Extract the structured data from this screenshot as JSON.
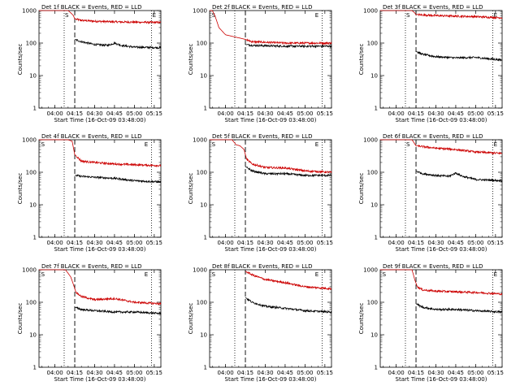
{
  "chart_data": [
    {
      "type": "line",
      "title": "Det 1f BLACK = Events, RED = LLD",
      "xlabel": "Start Time (16-Oct-09 03:48:00)",
      "ylabel": "Counts/sec",
      "yscale": "log",
      "ylim": [
        1,
        1000
      ],
      "x_tick_labels": [
        "04:00",
        "04:15",
        "04:30",
        "04:45",
        "05:00",
        "05:15"
      ],
      "y_tick_labels": [
        "1",
        "10",
        "100",
        "1000"
      ],
      "markers": [
        {
          "label": "S",
          "x": "04:07"
        },
        {
          "label": "E",
          "x": "05:13"
        }
      ],
      "dotted_x": [
        "04:07",
        "05:13"
      ],
      "dashed_x": [
        "04:15"
      ],
      "series": [
        {
          "color": "#cc0000",
          "x": [
            "03:48",
            "04:10",
            "04:12",
            "04:14",
            "04:15",
            "04:20",
            "04:30",
            "04:45",
            "05:00",
            "05:20"
          ],
          "values": [
            1000,
            1000,
            850,
            700,
            550,
            500,
            470,
            450,
            440,
            430
          ]
        },
        {
          "color": "#000000",
          "x": [
            "04:15",
            "04:20",
            "04:30",
            "04:40",
            "04:45",
            "04:50",
            "05:00",
            "05:20"
          ],
          "values": [
            130,
            110,
            90,
            85,
            100,
            85,
            75,
            72
          ]
        }
      ]
    },
    {
      "type": "line",
      "title": "Det 2f BLACK = Events, RED = LLD",
      "xlabel": "Start Time (16-Oct-09 03:48:00)",
      "ylabel": "Counts/sec",
      "yscale": "log",
      "ylim": [
        1,
        1000
      ],
      "x_tick_labels": [
        "04:00",
        "04:15",
        "04:30",
        "04:45",
        "05:00",
        "05:15"
      ],
      "y_tick_labels": [
        "1",
        "10",
        "100",
        "1000"
      ],
      "markers": [
        {
          "label": "S",
          "x": "03:49"
        },
        {
          "label": "E",
          "x": "05:07"
        }
      ],
      "dotted_x": [
        "04:07",
        "05:13"
      ],
      "dashed_x": [
        "04:15"
      ],
      "series": [
        {
          "color": "#cc0000",
          "x": [
            "03:48",
            "03:50",
            "03:52",
            "03:55",
            "04:00",
            "04:15",
            "04:20",
            "04:45",
            "05:20"
          ],
          "values": [
            1000,
            1000,
            700,
            300,
            180,
            130,
            110,
            100,
            100
          ]
        },
        {
          "color": "#000000",
          "x": [
            "04:15",
            "04:20",
            "04:45",
            "05:20"
          ],
          "values": [
            90,
            85,
            80,
            80
          ]
        }
      ]
    },
    {
      "type": "line",
      "title": "Det 3f BLACK = Events, RED = LLD",
      "xlabel": "Start Time (16-Oct-09 03:48:00)",
      "ylabel": "Counts/sec",
      "yscale": "log",
      "ylim": [
        1,
        1000
      ],
      "x_tick_labels": [
        "04:00",
        "04:15",
        "04:30",
        "04:45",
        "05:00",
        "05:15"
      ],
      "y_tick_labels": [
        "1",
        "10",
        "100",
        "1000"
      ],
      "markers": [
        {
          "label": "S",
          "x": "04:07"
        },
        {
          "label": "E",
          "x": "05:13"
        }
      ],
      "dotted_x": [
        "04:07",
        "05:13"
      ],
      "dashed_x": [
        "04:15"
      ],
      "series": [
        {
          "color": "#cc0000",
          "x": [
            "03:48",
            "04:12",
            "04:14",
            "04:15",
            "04:30",
            "05:00",
            "05:20"
          ],
          "values": [
            1000,
            1000,
            850,
            750,
            700,
            650,
            600
          ]
        },
        {
          "color": "#000000",
          "x": [
            "04:15",
            "04:20",
            "04:30",
            "04:45",
            "05:00",
            "05:20"
          ],
          "values": [
            55,
            45,
            38,
            35,
            36,
            30
          ]
        }
      ]
    },
    {
      "type": "line",
      "title": "Det 4f BLACK = Events, RED = LLD",
      "xlabel": "Start Time (16-Oct-09 03:48:00)",
      "ylabel": "Counts/sec",
      "yscale": "log",
      "ylim": [
        1,
        1000
      ],
      "x_tick_labels": [
        "04:00",
        "04:15",
        "04:30",
        "04:45",
        "05:00",
        "05:15"
      ],
      "y_tick_labels": [
        "1",
        "10",
        "100",
        "1000"
      ],
      "markers": [
        {
          "label": "S",
          "x": "03:49"
        },
        {
          "label": "E",
          "x": "05:07"
        }
      ],
      "dotted_x": [
        "04:07",
        "05:13"
      ],
      "dashed_x": [
        "04:15"
      ],
      "series": [
        {
          "color": "#cc0000",
          "x": [
            "03:48",
            "04:10",
            "04:13",
            "04:15",
            "04:20",
            "04:30",
            "04:45",
            "05:00",
            "05:20"
          ],
          "values": [
            1000,
            1000,
            900,
            350,
            220,
            200,
            180,
            170,
            160
          ]
        },
        {
          "color": "#000000",
          "x": [
            "04:15",
            "04:20",
            "04:30",
            "04:45",
            "05:00",
            "05:20"
          ],
          "values": [
            80,
            75,
            70,
            65,
            55,
            50
          ]
        }
      ]
    },
    {
      "type": "line",
      "title": "Det 5f BLACK = Events, RED = LLD",
      "xlabel": "Start Time (16-Oct-09 03:48:00)",
      "ylabel": "Counts/sec",
      "yscale": "log",
      "ylim": [
        1,
        1000
      ],
      "x_tick_labels": [
        "04:00",
        "04:15",
        "04:30",
        "04:45",
        "05:00",
        "05:15"
      ],
      "y_tick_labels": [
        "1",
        "10",
        "100",
        "1000"
      ],
      "markers": [
        {
          "label": "S",
          "x": "03:49"
        },
        {
          "label": "E",
          "x": "05:07"
        }
      ],
      "dotted_x": [
        "04:07",
        "05:13"
      ],
      "dashed_x": [
        "04:15"
      ],
      "series": [
        {
          "color": "#cc0000",
          "x": [
            "03:48",
            "04:05",
            "04:08",
            "04:11",
            "04:14",
            "04:16",
            "04:20",
            "04:30",
            "04:45",
            "05:00",
            "05:20"
          ],
          "values": [
            1000,
            1000,
            700,
            650,
            500,
            250,
            180,
            140,
            135,
            110,
            100
          ]
        },
        {
          "color": "#000000",
          "x": [
            "04:15",
            "04:20",
            "04:30",
            "04:45",
            "05:00",
            "05:20"
          ],
          "values": [
            150,
            110,
            90,
            90,
            80,
            80
          ]
        }
      ]
    },
    {
      "type": "line",
      "title": "Det 6f BLACK = Events, RED = LLD",
      "xlabel": "Start Time (16-Oct-09 03:48:00)",
      "ylabel": "Counts/sec",
      "yscale": "log",
      "ylim": [
        1,
        1000
      ],
      "x_tick_labels": [
        "04:00",
        "04:15",
        "04:30",
        "04:45",
        "05:00",
        "05:15"
      ],
      "y_tick_labels": [
        "1",
        "10",
        "100",
        "1000"
      ],
      "markers": [
        {
          "label": "S",
          "x": "04:07"
        },
        {
          "label": "E",
          "x": "05:13"
        }
      ],
      "dotted_x": [
        "04:07",
        "05:13"
      ],
      "dashed_x": [
        "04:15"
      ],
      "series": [
        {
          "color": "#cc0000",
          "x": [
            "03:48",
            "04:12",
            "04:15",
            "04:30",
            "04:45",
            "05:00",
            "05:20"
          ],
          "values": [
            1000,
            1000,
            650,
            550,
            500,
            420,
            380
          ]
        },
        {
          "color": "#000000",
          "x": [
            "04:15",
            "04:20",
            "04:30",
            "04:40",
            "04:45",
            "04:50",
            "05:00",
            "05:20"
          ],
          "values": [
            110,
            90,
            80,
            75,
            95,
            75,
            60,
            55
          ]
        }
      ]
    },
    {
      "type": "line",
      "title": "Det 7f BLACK = Events, RED = LLD",
      "xlabel": "Start Time (16-Oct-09 03:48:00)",
      "ylabel": "Counts/sec",
      "yscale": "log",
      "ylim": [
        1,
        1000
      ],
      "x_tick_labels": [
        "04:00",
        "04:15",
        "04:30",
        "04:45",
        "05:00",
        "05:15"
      ],
      "y_tick_labels": [
        "1",
        "10",
        "100",
        "1000"
      ],
      "markers": [
        {
          "label": "S",
          "x": "03:49"
        },
        {
          "label": "E",
          "x": "05:07"
        }
      ],
      "dotted_x": [
        "04:07",
        "05:13"
      ],
      "dashed_x": [
        "04:15"
      ],
      "series": [
        {
          "color": "#cc0000",
          "x": [
            "03:48",
            "04:08",
            "04:12",
            "04:14",
            "04:16",
            "04:20",
            "04:30",
            "04:45",
            "05:00",
            "05:20"
          ],
          "values": [
            1000,
            1000,
            600,
            350,
            200,
            150,
            120,
            130,
            100,
            90
          ]
        },
        {
          "color": "#000000",
          "x": [
            "04:15",
            "04:20",
            "04:30",
            "04:45",
            "05:00",
            "05:20"
          ],
          "values": [
            70,
            60,
            55,
            50,
            50,
            45
          ]
        }
      ]
    },
    {
      "type": "line",
      "title": "Det 8f BLACK = Events, RED = LLD",
      "xlabel": "Start Time (16-Oct-09 03:48:00)",
      "ylabel": "Counts/sec",
      "yscale": "log",
      "ylim": [
        1,
        1000
      ],
      "x_tick_labels": [
        "04:00",
        "04:15",
        "04:30",
        "04:45",
        "05:00",
        "05:15"
      ],
      "y_tick_labels": [
        "1",
        "10",
        "100",
        "1000"
      ],
      "markers": [
        {
          "label": "S",
          "x": "03:49"
        },
        {
          "label": "E",
          "x": "05:07"
        }
      ],
      "dotted_x": [
        "04:07",
        "05:13"
      ],
      "dashed_x": [
        "04:15"
      ],
      "series": [
        {
          "color": "#cc0000",
          "x": [
            "04:15",
            "04:20",
            "04:30",
            "04:45",
            "05:00",
            "05:20"
          ],
          "values": [
            900,
            700,
            500,
            400,
            300,
            260
          ]
        },
        {
          "color": "#000000",
          "x": [
            "04:15",
            "04:20",
            "04:30",
            "04:45",
            "05:00",
            "05:20"
          ],
          "values": [
            140,
            100,
            75,
            65,
            55,
            50
          ]
        }
      ]
    },
    {
      "type": "line",
      "title": "Det 9f BLACK = Events, RED = LLD",
      "xlabel": "Start Time (16-Oct-09 03:48:00)",
      "ylabel": "Counts/sec",
      "yscale": "log",
      "ylim": [
        1,
        1000
      ],
      "x_tick_labels": [
        "04:00",
        "04:15",
        "04:30",
        "04:45",
        "05:00",
        "05:15"
      ],
      "y_tick_labels": [
        "1",
        "10",
        "100",
        "1000"
      ],
      "markers": [
        {
          "label": "S",
          "x": "03:49"
        },
        {
          "label": "E",
          "x": "05:13"
        }
      ],
      "dotted_x": [
        "04:07",
        "05:13"
      ],
      "dashed_x": [
        "04:15"
      ],
      "series": [
        {
          "color": "#cc0000",
          "x": [
            "03:48",
            "04:12",
            "04:14",
            "04:16",
            "04:20",
            "04:30",
            "04:45",
            "05:00",
            "05:20"
          ],
          "values": [
            1000,
            1000,
            500,
            300,
            240,
            220,
            210,
            200,
            180
          ]
        },
        {
          "color": "#000000",
          "x": [
            "04:15",
            "04:20",
            "04:30",
            "04:45",
            "05:00",
            "05:20"
          ],
          "values": [
            90,
            70,
            60,
            60,
            55,
            50
          ]
        }
      ]
    }
  ]
}
